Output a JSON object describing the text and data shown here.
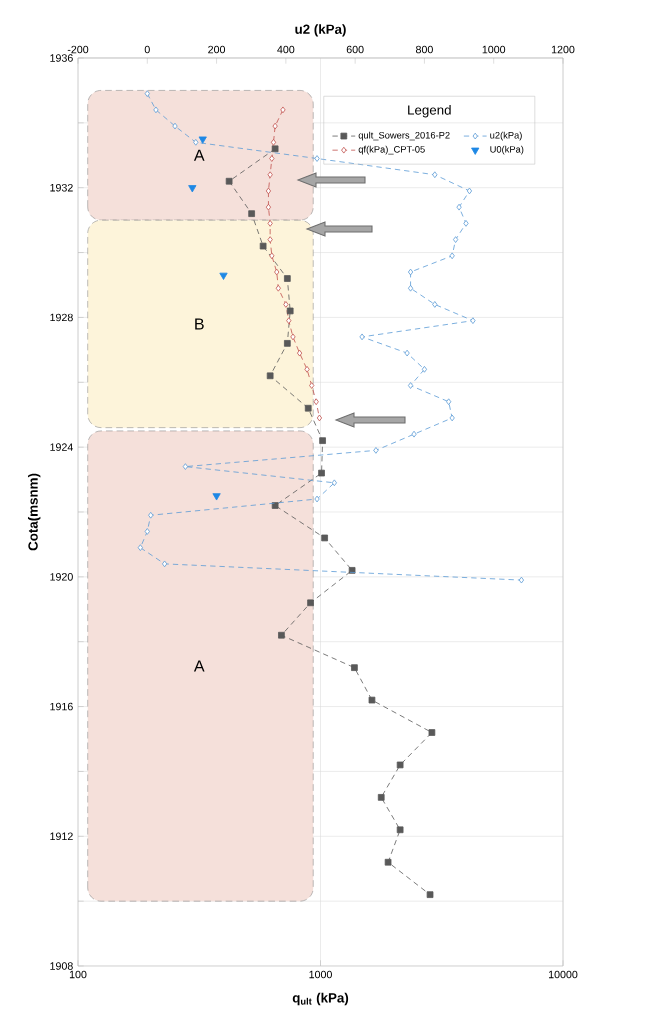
{
  "chart_data": {
    "type": "line",
    "xlabel": "q$_{ult}$ (kPa)",
    "ylabel": "Cota(msnm)",
    "x2label": "u2 (kPa)",
    "legend_title": "Legend",
    "log": "x",
    "grid": true,
    "legend": "top right",
    "xlim": [
      100,
      10000
    ],
    "xticks": [
      100,
      1000,
      10000
    ],
    "x2lim": [
      -200,
      1200
    ],
    "x2ticks": [
      -200,
      0,
      200,
      400,
      600,
      800,
      1000,
      1200
    ],
    "ylim": [
      1908,
      1936
    ],
    "yticks": [
      1908,
      {
        "value": 1910,
        "label": null
      },
      1912,
      {
        "value": 1914,
        "label": null
      },
      1916,
      {
        "value": 1918,
        "label": null
      },
      1920,
      {
        "value": 1922,
        "label": null
      },
      1924,
      {
        "value": 1926,
        "label": null
      },
      1928,
      {
        "value": 1930,
        "label": null
      },
      1932,
      {
        "value": 1934,
        "label": null
      },
      1936
    ],
    "bands": [
      {
        "axis": "y",
        "from": 1931,
        "to": 1935,
        "label": "A",
        "color": "#f5e0da"
      },
      {
        "axis": "y",
        "from": 1924.6,
        "to": 1931,
        "label": "B",
        "color": "#fdf4da"
      },
      {
        "axis": "y",
        "from": 1910,
        "to": 1924.5,
        "label": "A",
        "color": "#f5e0da"
      }
    ],
    "series": [
      {
        "name": "qult_Sowers_2016-P2",
        "color": "#595959",
        "marker": "square",
        "line_style": "dashed",
        "x": [
          650,
          420,
          520,
          580,
          730,
          750,
          730,
          620,
          890,
          1020,
          1010,
          650,
          1040,
          1350,
          910,
          690,
          1380,
          1630,
          2880,
          2130,
          1780,
          2130,
          1900,
          2830
        ],
        "values": [
          1933.2,
          1932.2,
          1931.2,
          1930.2,
          1929.2,
          1928.2,
          1927.2,
          1926.2,
          1925.2,
          1924.2,
          1923.2,
          1922.2,
          1921.2,
          1920.2,
          1919.2,
          1918.2,
          1917.2,
          1916.2,
          1915.2,
          1914.2,
          1913.2,
          1912.2,
          1911.2,
          1910.2
        ]
      },
      {
        "name": "u2(kPa)",
        "axis": "x2",
        "color": "#5b9bd5",
        "marker": "diamond",
        "line_style": "dashed",
        "x": [
          0,
          25,
          80,
          140,
          490,
          830,
          930,
          900,
          920,
          890,
          880,
          760,
          760,
          830,
          940,
          620,
          750,
          800,
          760,
          870,
          880,
          770,
          660,
          110,
          540,
          490,
          10,
          0,
          -20,
          50,
          1080
        ],
        "values": [
          1934.9,
          1934.4,
          1933.9,
          1933.4,
          1932.9,
          1932.4,
          1931.9,
          1931.4,
          1930.9,
          1930.4,
          1929.9,
          1929.4,
          1928.9,
          1928.4,
          1927.9,
          1927.4,
          1926.9,
          1926.4,
          1925.9,
          1925.4,
          1924.9,
          1924.4,
          1923.9,
          1923.4,
          1922.9,
          1922.4,
          1921.9,
          1921.4,
          1920.9,
          1920.4,
          1919.9
        ]
      },
      {
        "name": "qf(kPa)_CPT-05",
        "color": "#c0504d",
        "marker": "diamond",
        "line_style": "dashed",
        "x": [
          700,
          650,
          640,
          630,
          620,
          610,
          610,
          620,
          620,
          630,
          660,
          670,
          720,
          740,
          770,
          820,
          880,
          920,
          960,
          990
        ],
        "values": [
          1934.4,
          1933.9,
          1933.4,
          1932.9,
          1932.4,
          1931.9,
          1931.4,
          1930.9,
          1930.4,
          1929.9,
          1929.4,
          1928.9,
          1928.4,
          1927.9,
          1927.4,
          1926.9,
          1926.4,
          1925.9,
          1925.4,
          1924.9
        ]
      },
      {
        "name": "U0(kPa)",
        "type": "scatter",
        "axis": "x2",
        "color": "#1e88e5",
        "marker": "triangle",
        "x": [
          160,
          130,
          220,
          200
        ],
        "values": [
          1933.5,
          1932.0,
          1929.3,
          1922.5
        ]
      }
    ]
  }
}
